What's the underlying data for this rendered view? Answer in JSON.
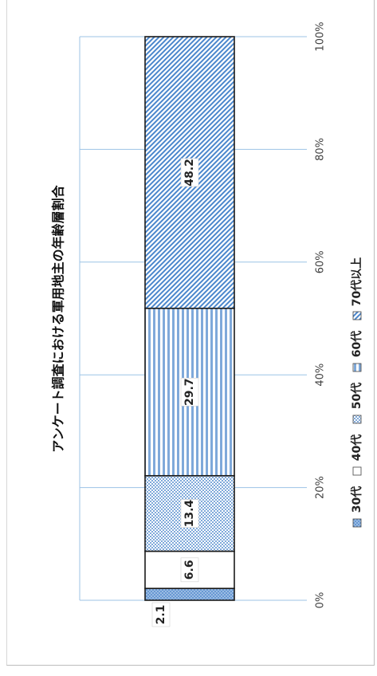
{
  "chart_data": {
    "type": "bar",
    "orientation": "stacked-100-percent",
    "title": "アンケート調査における軍用地主の年齢層割合",
    "xlabel": "",
    "ylabel": "",
    "xlim": [
      0,
      100
    ],
    "ticks": [
      "0%",
      "20%",
      "40%",
      "60%",
      "80%",
      "100%"
    ],
    "grid": true,
    "legend_position": "bottom",
    "series": [
      {
        "name": "30代",
        "value": 2.1,
        "label": "2.1",
        "color": "#8fb4de",
        "pattern": "cross"
      },
      {
        "name": "40代",
        "value": 6.6,
        "label": "6.6",
        "color": "#ffffff",
        "pattern": "none"
      },
      {
        "name": "50代",
        "value": 13.4,
        "label": "13.4",
        "color": "#8fb4de",
        "pattern": "dots"
      },
      {
        "name": "60代",
        "value": 29.7,
        "label": "29.7",
        "color": "#6d9fd6",
        "pattern": "lines"
      },
      {
        "name": "70代以上",
        "value": 48.2,
        "label": "48.2",
        "color": "#4a86cc",
        "pattern": "diagonal"
      }
    ]
  }
}
